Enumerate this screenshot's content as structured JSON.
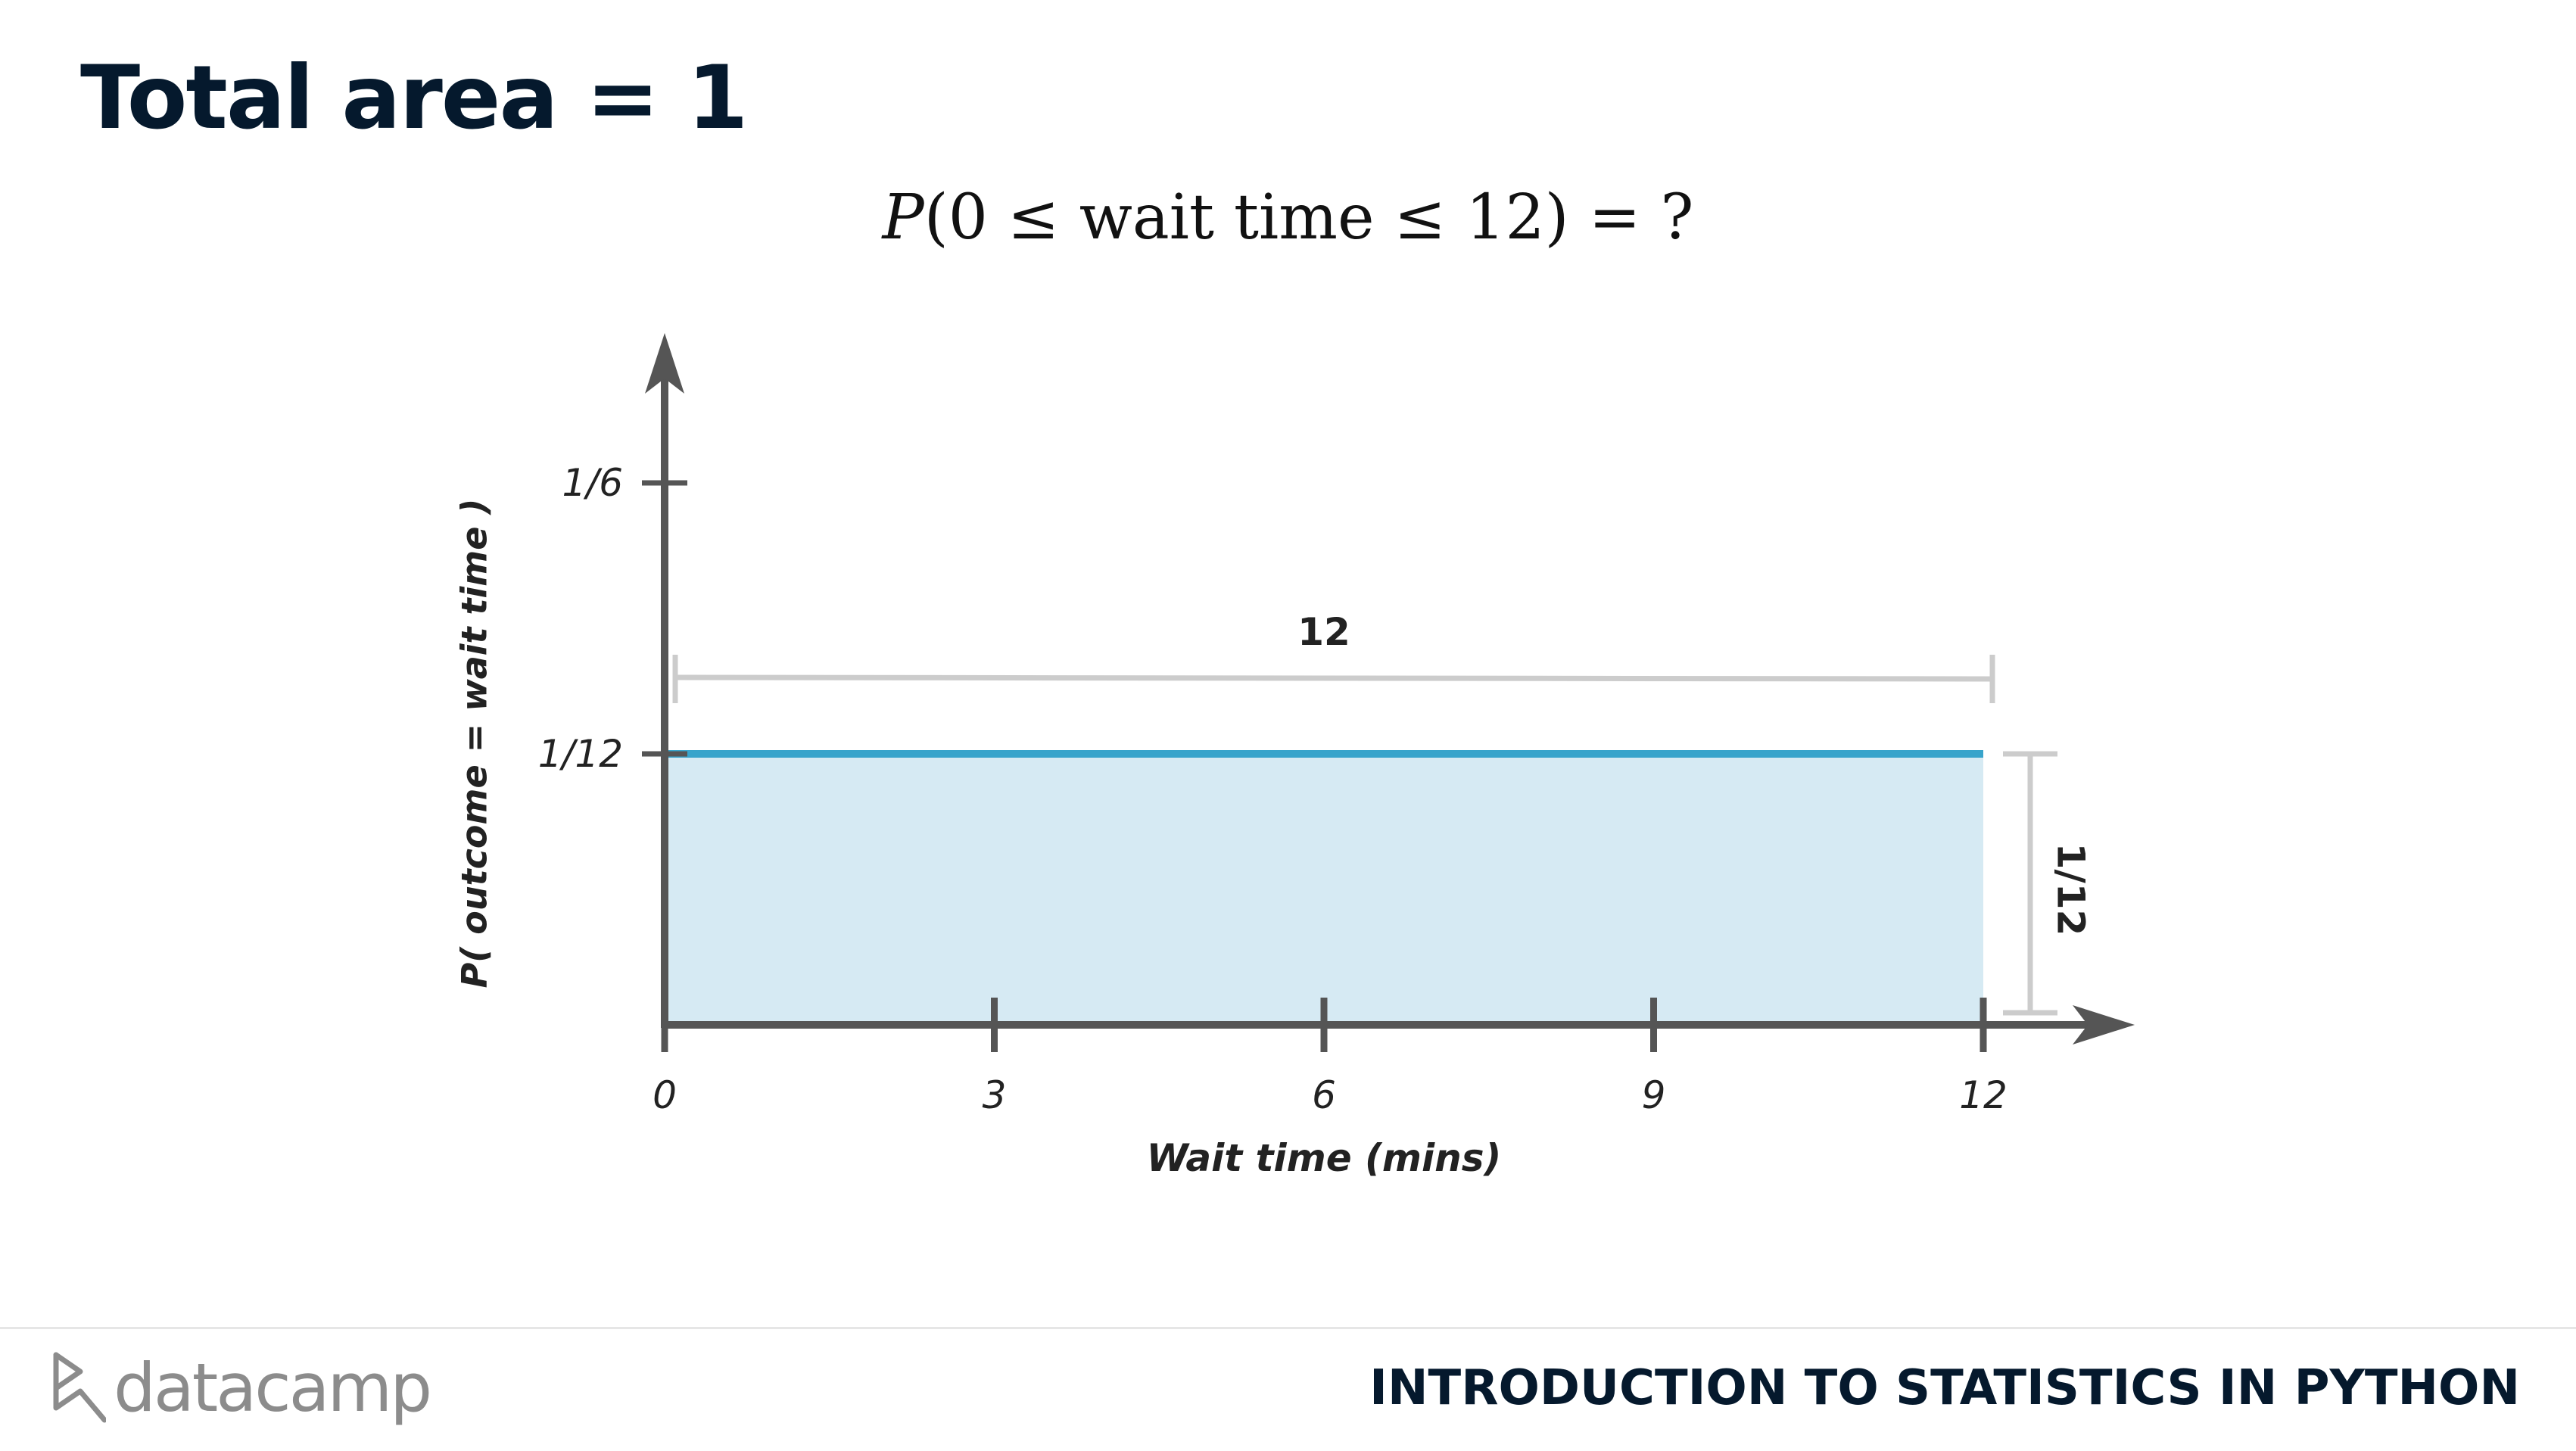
{
  "slide": {
    "title": "Total area = 1",
    "formula": {
      "p": "P",
      "body": "(0 ≤ wait time ≤ 12) =  ?"
    }
  },
  "chart_data": {
    "type": "area",
    "x": [
      0,
      12
    ],
    "values": [
      0.08333,
      0.08333
    ],
    "xticks": [
      0,
      3,
      6,
      9,
      12
    ],
    "xtick_labels": [
      "0",
      "3",
      "6",
      "9",
      "12"
    ],
    "yticks": [
      0.08333,
      0.16667
    ],
    "ytick_labels": [
      "1/12",
      "1/6"
    ],
    "xlabel": "Wait time (mins)",
    "ylabel": "P( outcome  = wait time )",
    "xlim": [
      0,
      12.5
    ],
    "ylim": [
      0,
      0.2
    ],
    "grid": false,
    "annotations": {
      "width_label": "12",
      "height_label": "1/12"
    },
    "colors": {
      "line": "#38a4cb",
      "fill": "#d6eaf3",
      "axis": "#555555",
      "bracket": "#cccccc"
    }
  },
  "footer": {
    "logo_text": "datacamp",
    "course_title": "INTRODUCTION TO STATISTICS IN PYTHON"
  }
}
